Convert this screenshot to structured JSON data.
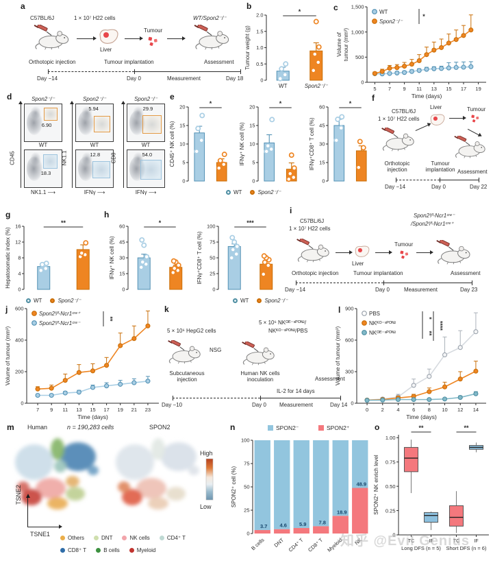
{
  "watermark": "知乎 @Evil Genius",
  "legend_wt_ko": {
    "wt": "WT",
    "ko": "Spon2⁻/⁻"
  },
  "colors": {
    "blue_fill": "#A9CEE4",
    "blue_stroke": "#5291B4",
    "orange_fill": "#EE8522",
    "orange_stroke": "#C96E07",
    "teal_fill": "#82B9C8",
    "teal_stroke": "#4E8EA2",
    "gray_fill": "#D9DDE2",
    "gray_stroke": "#9AA2AC",
    "pink": "#F4787D",
    "box_blue": "#8CC0DE",
    "navy": "#16456B",
    "red": "#E8474B"
  },
  "panels": {
    "a": {
      "label": "a",
      "strain": "C57BL/6J",
      "cells": "1 × 10⁷ H22 cells",
      "liver": "Liver",
      "tumour": "Tumour",
      "recipient": "WT/Spon2⁻/⁻",
      "step1": "Orthotopic injection",
      "step2": "Tumour implantation",
      "step3": "Assessment",
      "day1": "Day −14",
      "day2": "Day 0",
      "measurement": "Measurement",
      "day3": "Day 18"
    },
    "b": {
      "label": "b"
    },
    "c": {
      "label": "c"
    },
    "d": {
      "label": "d",
      "top_title": "Spon2⁻/⁻",
      "bottom_title": "WT",
      "cols": [
        {
          "y": "CD45",
          "x": "NK1.1",
          "top_val": "6.90",
          "bottom_val": "18.3"
        },
        {
          "y": "NK1.1",
          "x": "IFNγ",
          "top_val": "5.94",
          "bottom_val": "12.8"
        },
        {
          "y": "CD8",
          "x": "IFNγ",
          "top_val": "29.9",
          "bottom_val": "54.0"
        }
      ]
    },
    "e": {
      "label": "e"
    },
    "f": {
      "label": "f",
      "strain": "C57BL/6J",
      "cells": "1 × 10⁷ H22 cells",
      "liver": "Liver",
      "tumour": "Tumour",
      "step1a": "Orthotopic",
      "step1b": "injection",
      "step2a": "Tumour",
      "step2b": "implantation",
      "step3": "Assessment",
      "day1": "Day −14",
      "day2": "Day 0",
      "day3": "Day 22"
    },
    "g": {
      "label": "g"
    },
    "h": {
      "label": "h"
    },
    "i": {
      "label": "i",
      "strain": "C57BL/6J",
      "cells": "1 × 10⁷ H22 cells",
      "liver": "Liver",
      "tumour": "Tumour",
      "recipient1": "Spon2ᶠ/ᶠ-Ncr1ᶜʳᵉ⁻",
      "recipient2": "/Spon2ᶠ/ᶠ-Ncr1ᶜʳᵉ⁺",
      "step1": "Orthotopic injection",
      "step2": "Tumour implantation",
      "step3": "Assessment",
      "day1": "Day −14",
      "day2": "Day 0",
      "measurement": "Measurement",
      "day3": "Day 23"
    },
    "j": {
      "label": "j"
    },
    "k": {
      "label": "k",
      "cells": "5 × 10⁶ HepG2 cells",
      "nsg": "NSG",
      "nk1": "5 × 10⁶ NKᴼᴱ⁻ˢᴾᴼᴺ²/",
      "nk2": "NKᴷᴼ⁻ˢᴾᴼᴺ²/PBS",
      "step1a": "Subcutaneous",
      "step1b": "injection",
      "step2a": "Human NK cells",
      "step2b": "inoculation",
      "il2": "IL-2 for 14 days",
      "step3": "Assessment",
      "day1": "Day −10",
      "day2": "Day 0",
      "measurement": "Measurement",
      "day3": "Day 14"
    },
    "l": {
      "label": "l"
    },
    "m": {
      "label": "m",
      "species": "Human",
      "n_text": "n = 190,283 cells",
      "right_title": "SPON2",
      "x_axis": "TSNE1",
      "y_axis": "TSNE2",
      "scale_high": "High",
      "scale_low": "Low",
      "legend": [
        {
          "label": "Others",
          "color": "#EBAE4A"
        },
        {
          "label": "DNT",
          "color": "#CFDFAE"
        },
        {
          "label": "NK cells",
          "color": "#F2A5AB"
        },
        {
          "label": "CD4⁺ T",
          "color": "#BFD9D3"
        },
        {
          "label": "CD8⁺ T",
          "color": "#2F6DA8"
        },
        {
          "label": "B cells",
          "color": "#3D9140"
        },
        {
          "label": "Myeloid",
          "color": "#C1342F"
        }
      ]
    },
    "n": {
      "label": "n"
    },
    "o": {
      "label": "o"
    }
  },
  "chart_data": [
    {
      "panel": "b",
      "type": "bar",
      "ylabel": "Tumour weight (g)",
      "ylim": [
        0,
        2
      ],
      "yticks": [
        0,
        0.5,
        1,
        1.5,
        2
      ],
      "ytick_labels": [
        "0",
        "0.5",
        "1.0",
        "1.5",
        "2.0"
      ],
      "categories": [
        "WT",
        "Spon2⁻/⁻"
      ],
      "show_cats": true,
      "values": [
        0.28,
        0.9
      ],
      "errors": [
        0.12,
        0.25
      ],
      "points": [
        [
          0.05,
          0.17,
          0.35,
          0.5
        ],
        [
          0.3,
          0.55,
          0.8,
          1.02,
          1.8
        ]
      ],
      "sig": "*"
    },
    {
      "panel": "c",
      "type": "line",
      "ylabel": [
        "Volume of",
        "tumour (mm³)"
      ],
      "xlabel": "Time (days)",
      "ylim": [
        0,
        1500
      ],
      "yticks": [
        0,
        500,
        1000,
        1500
      ],
      "ytick_labels": [
        "0",
        "500",
        "1,000",
        "1,500"
      ],
      "xlim": [
        4.5,
        19.5
      ],
      "x": [
        5,
        6,
        7,
        8,
        9,
        10,
        11,
        12,
        13,
        14,
        15,
        16,
        17,
        18
      ],
      "xticks": [
        5,
        7,
        9,
        11,
        13,
        15,
        17,
        19
      ],
      "legend_pos": "tl",
      "sig": "*",
      "series": [
        {
          "name": "WT",
          "color": "blue",
          "values": [
            170,
            168,
            175,
            185,
            195,
            215,
            235,
            258,
            270,
            275,
            285,
            295,
            300,
            310
          ],
          "err": [
            25,
            25,
            25,
            30,
            30,
            35,
            35,
            40,
            40,
            45,
            105,
            105,
            105,
            100
          ]
        },
        {
          "name": "Spon2⁻/⁻",
          "color": "orange",
          "values": [
            175,
            215,
            280,
            292,
            320,
            360,
            430,
            550,
            640,
            690,
            780,
            850,
            930,
            1040
          ],
          "err": [
            30,
            45,
            55,
            60,
            75,
            95,
            120,
            150,
            160,
            170,
            180,
            190,
            200,
            300
          ]
        }
      ]
    },
    {
      "panel": "e1",
      "type": "bar",
      "ylabel": "CD45⁺ NK cell (%)",
      "ylim": [
        0,
        20
      ],
      "yticks": [
        0,
        5,
        10,
        15,
        20
      ],
      "ytick_labels": [
        "0",
        "5",
        "10",
        "15",
        "20"
      ],
      "values": [
        13,
        5
      ],
      "errors": [
        1.8,
        1
      ],
      "points": [
        [
          8,
          11,
          14.2,
          17.7
        ],
        [
          3.5,
          4.5,
          5.5,
          7.2
        ]
      ],
      "sig": "*"
    },
    {
      "panel": "e2",
      "type": "bar",
      "ylabel": "IFNγ⁺ NK cell (%)",
      "ylim": [
        0,
        20
      ],
      "yticks": [
        0,
        5,
        10,
        15,
        20
      ],
      "ytick_labels": [
        "0",
        "5",
        "10",
        "15",
        "20"
      ],
      "values": [
        10.3,
        3.2
      ],
      "errors": [
        2.2,
        1.7
      ],
      "points": [
        [
          8,
          8.6,
          9.5,
          16.6
        ],
        [
          0.5,
          1,
          2,
          3.5,
          7
        ]
      ],
      "sig": "*"
    },
    {
      "panel": "e3",
      "type": "bar",
      "ylabel": "IFNγ⁺CD8⁺ T cell (%)",
      "ylim": [
        0,
        60
      ],
      "yticks": [
        0,
        15,
        30,
        45,
        60
      ],
      "ytick_labels": [
        "0",
        "15",
        "30",
        "45",
        "60"
      ],
      "values": [
        45,
        24.5
      ],
      "errors": [
        5,
        4
      ],
      "points": [
        [
          33,
          43,
          50,
          52
        ],
        [
          11,
          27,
          32
        ]
      ],
      "sig": "*"
    },
    {
      "panel": "g",
      "type": "bar",
      "ylabel": "Hepatosomatic index (%)",
      "ylim": [
        0,
        16
      ],
      "yticks": [
        0,
        4,
        8,
        12,
        16
      ],
      "ytick_labels": [
        "0",
        "4",
        "8",
        "12",
        "16"
      ],
      "values": [
        5.8,
        10.1
      ],
      "errors": [
        0.5,
        1.2
      ],
      "points": [
        [
          4.8,
          5.3,
          6.3,
          6.6
        ],
        [
          8.3,
          8.8,
          9.2,
          11.8
        ]
      ],
      "sig": "**"
    },
    {
      "panel": "h1",
      "type": "bar",
      "ylabel": "IFNγ⁺ NK cell (%)",
      "ylim": [
        0,
        60
      ],
      "yticks": [
        0,
        15,
        30,
        45,
        60
      ],
      "ytick_labels": [
        "0",
        "15",
        "30",
        "45",
        "60"
      ],
      "values": [
        30,
        21
      ],
      "errors": [
        3.5,
        2
      ],
      "points": [
        [
          21,
          24,
          26,
          31,
          42,
          47
        ],
        [
          16,
          18,
          20,
          23,
          26,
          27
        ]
      ],
      "sig": "*"
    },
    {
      "panel": "h2",
      "type": "bar",
      "ylabel": "IFNγ⁺CD8⁺ T cell (%)",
      "ylim": [
        0,
        100
      ],
      "yticks": [
        0,
        25,
        50,
        75,
        100
      ],
      "ytick_labels": [
        "0",
        "25",
        "50",
        "75",
        "100"
      ],
      "values": [
        68,
        40
      ],
      "errors": [
        4,
        4
      ],
      "points": [
        [
          50,
          56,
          63,
          68,
          75,
          82
        ],
        [
          24,
          38,
          43,
          47,
          50,
          53
        ]
      ],
      "sig": "***"
    },
    {
      "panel": "j",
      "type": "line",
      "ylabel": "Volume of tumour (mm³)",
      "xlabel": "Time (days)",
      "ylim": [
        0,
        600
      ],
      "yticks": [
        0,
        200,
        400,
        600
      ],
      "ytick_labels": [
        "0",
        "200",
        "400",
        "600"
      ],
      "xlim": [
        6,
        24
      ],
      "x": [
        7,
        9,
        11,
        13,
        15,
        17,
        19,
        21,
        23
      ],
      "xticks": [
        7,
        9,
        11,
        13,
        15,
        17,
        19,
        21,
        23
      ],
      "legend_pos": "tl",
      "sig": "**",
      "series": [
        {
          "name": "Spon2ᶠ/ᶠ-Ncr1ᶜʳᵉ⁺",
          "color": "orange",
          "values": [
            90,
            95,
            145,
            195,
            205,
            240,
            365,
            410,
            490
          ],
          "err": [
            15,
            20,
            40,
            50,
            45,
            50,
            80,
            80,
            95
          ]
        },
        {
          "name": "Spon2ᶠ/ᶠ-Ncr1ᶜʳᵉ⁻",
          "color": "blue",
          "values": [
            50,
            50,
            65,
            70,
            100,
            110,
            120,
            130,
            140
          ],
          "err": [
            8,
            8,
            10,
            12,
            15,
            20,
            25,
            25,
            30
          ]
        }
      ]
    },
    {
      "panel": "l",
      "type": "line",
      "ylabel": "Volume of tumour (mm³)",
      "xlabel": "Time (days)",
      "ylim": [
        0,
        900
      ],
      "yticks": [
        0,
        300,
        600,
        900
      ],
      "ytick_labels": [
        "0",
        "300",
        "600",
        "900"
      ],
      "xlim": [
        -0.8,
        14.8
      ],
      "x": [
        0,
        2,
        4,
        6,
        8,
        10,
        12,
        14
      ],
      "xticks": [
        0,
        2,
        4,
        6,
        8,
        10,
        12,
        14
      ],
      "legend_pos": "tl",
      "sigs": [
        "*",
        "**",
        "****"
      ],
      "series": [
        {
          "name": "PBS",
          "color": "gray",
          "values": [
            30,
            40,
            60,
            170,
            255,
            460,
            530,
            680
          ],
          "err": [
            10,
            15,
            25,
            60,
            70,
            170,
            160,
            180
          ]
        },
        {
          "name": "NKᴷᴼ⁻ˢᴾᴼᴺ²",
          "color": "orange",
          "values": [
            30,
            35,
            50,
            65,
            110,
            155,
            230,
            305
          ],
          "err": [
            5,
            10,
            15,
            20,
            35,
            45,
            70,
            95
          ]
        },
        {
          "name": "NKᴼᴱ⁻ˢᴾᴼᴺ²",
          "color": "teal",
          "values": [
            28,
            30,
            35,
            35,
            35,
            40,
            55,
            90
          ],
          "err": [
            5,
            5,
            8,
            8,
            8,
            10,
            15,
            20
          ]
        }
      ]
    },
    {
      "panel": "n",
      "type": "stacked_bar",
      "ylabel": "SPON2⁺ cell (%)",
      "ylim": [
        0,
        100
      ],
      "yticks": [
        0,
        25,
        50,
        75,
        100
      ],
      "ytick_labels": [
        "0",
        "25",
        "50",
        "75",
        "100"
      ],
      "categories": [
        "B cells",
        "DNT",
        "CD4⁺ T",
        "CD8⁺ T",
        "Myeloid",
        "NK"
      ],
      "values": [
        3.7,
        4.6,
        5.9,
        7.8,
        18.9,
        48.9
      ],
      "legend": [
        {
          "label": "SPON2⁻",
          "color": "#92C5DE"
        },
        {
          "label": "SPON2⁺",
          "color": "#F4787D"
        }
      ]
    },
    {
      "panel": "o",
      "type": "box",
      "ylabel": "SPON2⁺ NK enrich level",
      "ylim": [
        0,
        1.03
      ],
      "yticks": [
        0,
        0.25,
        0.5,
        0.75,
        1
      ],
      "ytick_labels": [
        "0",
        "0.25",
        "0.50",
        "0.75",
        "1.00"
      ],
      "groups": [
        {
          "label": "Long DFS (n = 5)",
          "sig": "**",
          "boxes": [
            {
              "tick": "TC",
              "color": "pink",
              "low": 0.43,
              "q1": 0.65,
              "med": 0.79,
              "q3": 0.9,
              "high": 0.98
            },
            {
              "tick": "IF",
              "color": "boxblue",
              "low": 0.05,
              "q1": 0.13,
              "med": 0.2,
              "q3": 0.23,
              "high": 0.24
            }
          ]
        },
        {
          "label": "Short DFS (n = 6)",
          "sig": "**",
          "boxes": [
            {
              "tick": "TC",
              "color": "pink",
              "low": 0.02,
              "q1": 0.09,
              "med": 0.18,
              "q3": 0.3,
              "high": 0.45
            },
            {
              "tick": "IF",
              "color": "boxblue",
              "low": 0.85,
              "q1": 0.88,
              "med": 0.9,
              "q3": 0.92,
              "high": 0.95
            }
          ]
        }
      ]
    }
  ]
}
